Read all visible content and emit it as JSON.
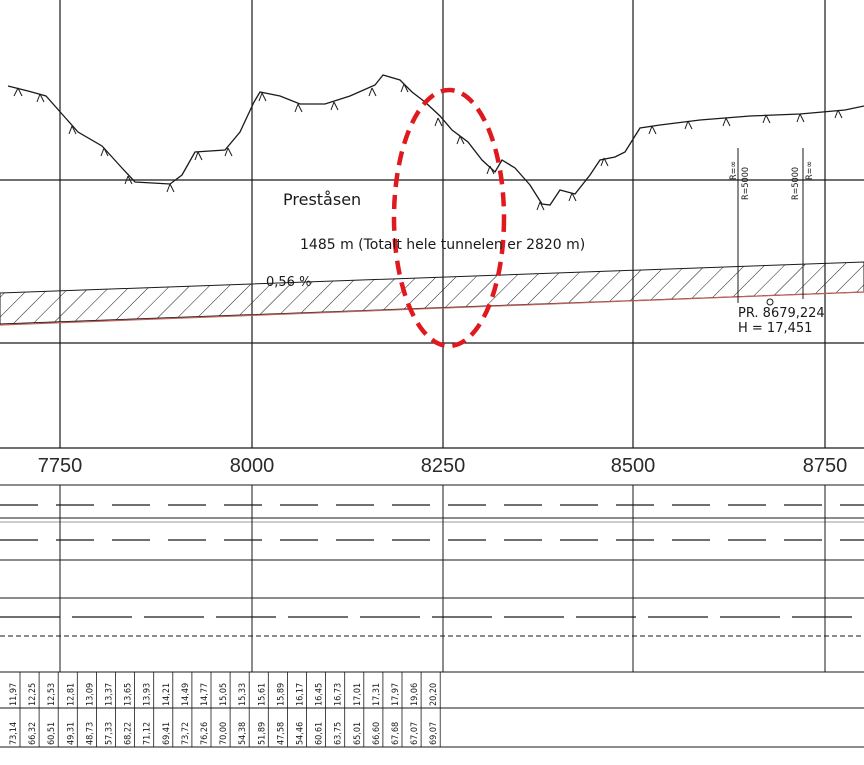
{
  "profile": {
    "place_name": "Preståsen",
    "tunnel_length_label": "1485 m (Totalt hele tunnelen er 2820 m)",
    "gradient_label": "0,56 %",
    "station_point_label": "PR. 8679,224",
    "elevation_label": "H = 17,451",
    "curve_labels": [
      "R=∞",
      "R=5000",
      "R=5000",
      "R=∞"
    ]
  },
  "stations": [
    "7750",
    "8000",
    "8250",
    "8500",
    "8750"
  ],
  "table": {
    "top_row": [
      "73,14",
      "66,32",
      "60,51",
      "49,31",
      "48,73",
      "57,33",
      "68,22",
      "71,12",
      "69,41",
      "73,72",
      "76,26",
      "70,00",
      "54,38",
      "51,89",
      "47,58",
      "54,46",
      "60,61",
      "63,75",
      "65,01",
      "66,60",
      "67,68",
      "67,07",
      "69,07"
    ],
    "bottom_row": [
      "11,97",
      "12,25",
      "12,53",
      "12,81",
      "13,09",
      "13,37",
      "13,65",
      "13,93",
      "14,21",
      "14,49",
      "14,77",
      "15,05",
      "15,33",
      "15,61",
      "15,89",
      "16,17",
      "16,45",
      "16,73",
      "17,01",
      "17,31",
      "17,97",
      "19,06",
      "20,20"
    ]
  },
  "colors": {
    "line": "#1a1a1a",
    "highlight": "#e0191f",
    "road_red": "#c0605a"
  }
}
